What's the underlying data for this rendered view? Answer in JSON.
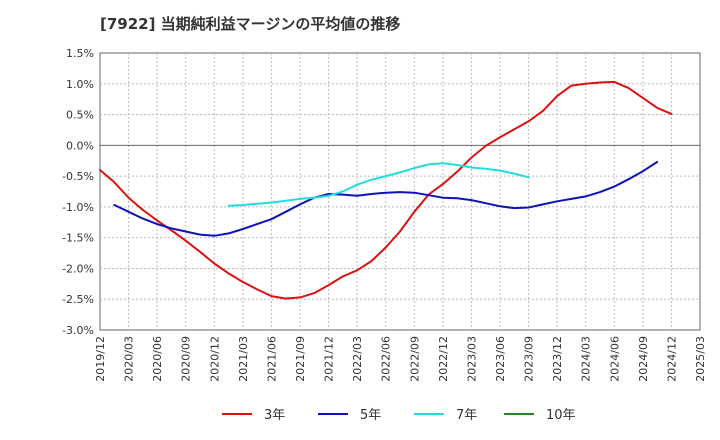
{
  "chart_data": {
    "type": "line",
    "title": "[7922]  当期純利益マージンの平均値の推移",
    "xlabel": "",
    "ylabel": "",
    "x_ticks": [
      "2019/12",
      "2020/03",
      "2020/06",
      "2020/09",
      "2020/12",
      "2021/03",
      "2021/06",
      "2021/09",
      "2021/12",
      "2022/03",
      "2022/06",
      "2022/09",
      "2022/12",
      "2023/03",
      "2023/06",
      "2023/09",
      "2023/12",
      "2024/03",
      "2024/06",
      "2024/09",
      "2024/12",
      "2025/03"
    ],
    "y_ticks": [
      "1.5%",
      "1.0%",
      "0.5%",
      "0.0%",
      "-0.5%",
      "-1.0%",
      "-1.5%",
      "-2.0%",
      "-2.5%",
      "-3.0%"
    ],
    "ylim": [
      -3.0,
      1.5
    ],
    "grid": true,
    "legend_position": "bottom",
    "series": [
      {
        "name": "3年",
        "color": "#dd1111",
        "start_index": 0,
        "values": [
          -0.4,
          -0.6,
          -0.85,
          -1.05,
          -1.22,
          -1.38,
          -1.55,
          -1.73,
          -1.92,
          -2.08,
          -2.22,
          -2.34,
          -2.45,
          -2.49,
          -2.47,
          -2.4,
          -2.27,
          -2.13,
          -2.03,
          -1.88,
          -1.66,
          -1.4,
          -1.08,
          -0.8,
          -0.63,
          -0.43,
          -0.2,
          -0.01,
          0.13,
          0.26,
          0.39,
          0.56,
          0.8,
          0.97,
          1.0,
          1.02,
          1.03,
          0.93,
          0.77,
          0.61,
          0.51
        ]
      },
      {
        "name": "5年",
        "color": "#1111bb",
        "start_index": 1,
        "values": [
          -0.97,
          -1.08,
          -1.19,
          -1.28,
          -1.35,
          -1.4,
          -1.45,
          -1.47,
          -1.43,
          -1.36,
          -1.28,
          -1.2,
          -1.08,
          -0.96,
          -0.85,
          -0.79,
          -0.8,
          -0.82,
          -0.79,
          -0.77,
          -0.76,
          -0.77,
          -0.81,
          -0.85,
          -0.86,
          -0.89,
          -0.94,
          -0.99,
          -1.02,
          -1.01,
          -0.96,
          -0.91,
          -0.87,
          -0.83,
          -0.76,
          -0.67,
          -0.55,
          -0.42,
          -0.27
        ]
      },
      {
        "name": "7年",
        "color": "#22dddd",
        "start_index": 9,
        "values": [
          -0.98,
          -0.97,
          -0.95,
          -0.93,
          -0.9,
          -0.87,
          -0.85,
          -0.82,
          -0.75,
          -0.64,
          -0.56,
          -0.5,
          -0.44,
          -0.37,
          -0.31,
          -0.29,
          -0.32,
          -0.36,
          -0.38,
          -0.41,
          -0.46,
          -0.52
        ]
      },
      {
        "name": "10年",
        "color": "#228822",
        "start_index": null,
        "values": []
      }
    ]
  }
}
